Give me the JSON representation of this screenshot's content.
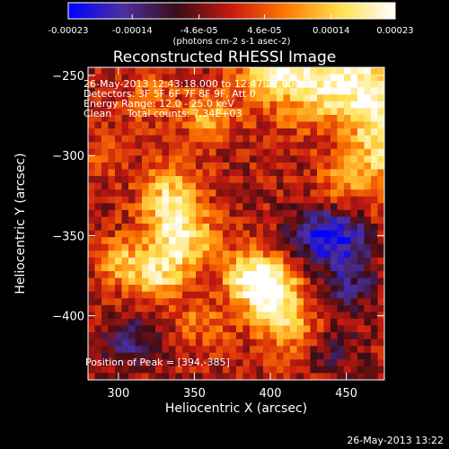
{
  "chart_data": {
    "type": "heatmap",
    "title": "Reconstructed RHESSI Image",
    "xlabel": "Heliocentric X (arcsec)",
    "ylabel": "Heliocentric Y (arcsec)",
    "xlim": [
      280,
      475
    ],
    "ylim": [
      -440,
      -245
    ],
    "xticks": [
      300,
      350,
      400,
      450
    ],
    "yticks": [
      -250,
      -300,
      -350,
      -400
    ],
    "colorbar": {
      "range": [
        -0.00023,
        0.00023
      ],
      "tick_values": [
        -0.00023,
        -0.00014,
        -4.6e-05,
        4.6e-05,
        0.00014,
        0.00023
      ],
      "tick_labels": [
        "-0.00023",
        "-0.00014",
        "-4.6e-05",
        "4.6e-05",
        "0.00014",
        "0.00023"
      ],
      "unit_label": "(photons cm-2 s-1 asec-2)",
      "colormap": [
        "#0000ff",
        "#4b2fa0",
        "#3a0c15",
        "#c81a10",
        "#ff7a00",
        "#ffe050",
        "#ffffff"
      ]
    },
    "info_lines": [
      "26-May-2013 12:43:18.000 to 12:47:22.000",
      "Detectors: 3F 5F 6F 7F 8F 9F, Att 0",
      "Energy Range: 12.0 - 25.0 keV",
      "Clean     Total counts: 7.34E+03"
    ],
    "peak_annotation": "Position of Peak = [394,-385]",
    "peak_position": [
      394,
      -385
    ],
    "intensity_sources": [
      {
        "x": 400,
        "y": -385,
        "amp": 1.0,
        "sx": 14,
        "sy": 14
      },
      {
        "x": 385,
        "y": -375,
        "amp": 0.65,
        "sx": 12,
        "sy": 10
      },
      {
        "x": 335,
        "y": -330,
        "amp": 0.85,
        "sx": 14,
        "sy": 16
      },
      {
        "x": 345,
        "y": -355,
        "amp": 0.6,
        "sx": 16,
        "sy": 12
      },
      {
        "x": 325,
        "y": -375,
        "amp": 0.75,
        "sx": 14,
        "sy": 11
      },
      {
        "x": 300,
        "y": -365,
        "amp": 0.5,
        "sx": 10,
        "sy": 10
      },
      {
        "x": 440,
        "y": -255,
        "amp": 0.95,
        "sx": 30,
        "sy": 18
      },
      {
        "x": 470,
        "y": -290,
        "amp": 0.7,
        "sx": 12,
        "sy": 30
      },
      {
        "x": 400,
        "y": -250,
        "amp": 0.5,
        "sx": 15,
        "sy": 8
      },
      {
        "x": 360,
        "y": -275,
        "amp": 0.55,
        "sx": 12,
        "sy": 10
      },
      {
        "x": 415,
        "y": -410,
        "amp": 0.5,
        "sx": 15,
        "sy": 12
      },
      {
        "x": 355,
        "y": -405,
        "amp": 0.35,
        "sx": 14,
        "sy": 10
      },
      {
        "x": 445,
        "y": -315,
        "amp": 0.4,
        "sx": 10,
        "sy": 12
      },
      {
        "x": 290,
        "y": -300,
        "amp": 0.3,
        "sx": 10,
        "sy": 10
      },
      {
        "x": 320,
        "y": -265,
        "amp": 0.35,
        "sx": 12,
        "sy": 10
      },
      {
        "x": 440,
        "y": -350,
        "amp": -0.9,
        "sx": 18,
        "sy": 12
      },
      {
        "x": 450,
        "y": -380,
        "amp": -0.5,
        "sx": 14,
        "sy": 14
      },
      {
        "x": 310,
        "y": -415,
        "amp": -0.5,
        "sx": 14,
        "sy": 12
      },
      {
        "x": 440,
        "y": -420,
        "amp": -0.4,
        "sx": 14,
        "sy": 10
      }
    ]
  },
  "footer": {
    "timestamp": "26-May-2013 13:22"
  }
}
